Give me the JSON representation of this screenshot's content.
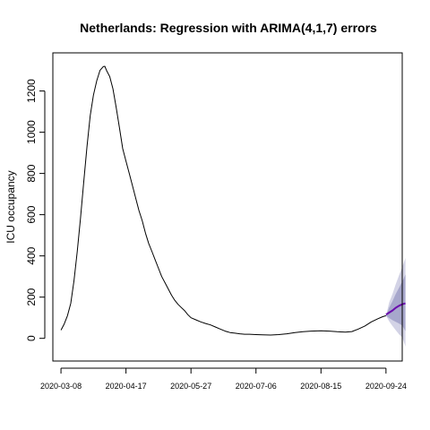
{
  "chart_data": {
    "type": "line",
    "title": "Netherlands: Regression with ARIMA(4,1,7) errors",
    "xlabel": "",
    "ylabel": "ICU occupancy",
    "x_tick_labels": [
      "2020-03-08",
      "2020-04-17",
      "2020-05-27",
      "2020-07-06",
      "2020-08-15",
      "2020-09-24"
    ],
    "x_tick_dates": [
      "2020-03-08",
      "2020-04-17",
      "2020-05-27",
      "2020-07-06",
      "2020-08-15",
      "2020-09-24"
    ],
    "y_ticks": [
      0,
      200,
      400,
      600,
      800,
      1000,
      1200
    ],
    "xlim": [
      "2020-03-03",
      "2020-10-04"
    ],
    "ylim": [
      -110,
      1385
    ],
    "grid": false,
    "legend": "none",
    "series": [
      {
        "role": "observed",
        "color": "#000000",
        "points": [
          [
            "2020-03-08",
            40
          ],
          [
            "2020-03-10",
            70
          ],
          [
            "2020-03-12",
            110
          ],
          [
            "2020-03-14",
            170
          ],
          [
            "2020-03-16",
            280
          ],
          [
            "2020-03-18",
            420
          ],
          [
            "2020-03-20",
            580
          ],
          [
            "2020-03-22",
            760
          ],
          [
            "2020-03-24",
            930
          ],
          [
            "2020-03-26",
            1080
          ],
          [
            "2020-03-28",
            1180
          ],
          [
            "2020-03-30",
            1250
          ],
          [
            "2020-04-01",
            1300
          ],
          [
            "2020-04-03",
            1318
          ],
          [
            "2020-04-04",
            1320
          ],
          [
            "2020-04-05",
            1300
          ],
          [
            "2020-04-07",
            1270
          ],
          [
            "2020-04-09",
            1210
          ],
          [
            "2020-04-11",
            1120
          ],
          [
            "2020-04-13",
            1020
          ],
          [
            "2020-04-15",
            920
          ],
          [
            "2020-04-17",
            860
          ],
          [
            "2020-04-19",
            800
          ],
          [
            "2020-04-21",
            740
          ],
          [
            "2020-04-23",
            680
          ],
          [
            "2020-04-25",
            620
          ],
          [
            "2020-04-27",
            570
          ],
          [
            "2020-04-29",
            510
          ],
          [
            "2020-05-01",
            460
          ],
          [
            "2020-05-03",
            420
          ],
          [
            "2020-05-05",
            380
          ],
          [
            "2020-05-07",
            340
          ],
          [
            "2020-05-09",
            300
          ],
          [
            "2020-05-11",
            270
          ],
          [
            "2020-05-13",
            240
          ],
          [
            "2020-05-15",
            210
          ],
          [
            "2020-05-17",
            185
          ],
          [
            "2020-05-19",
            165
          ],
          [
            "2020-05-21",
            150
          ],
          [
            "2020-05-23",
            135
          ],
          [
            "2020-05-25",
            115
          ],
          [
            "2020-05-27",
            100
          ],
          [
            "2020-05-30",
            90
          ],
          [
            "2020-06-02",
            80
          ],
          [
            "2020-06-05",
            72
          ],
          [
            "2020-06-08",
            65
          ],
          [
            "2020-06-11",
            55
          ],
          [
            "2020-06-14",
            45
          ],
          [
            "2020-06-17",
            35
          ],
          [
            "2020-06-20",
            28
          ],
          [
            "2020-06-23",
            25
          ],
          [
            "2020-06-26",
            22
          ],
          [
            "2020-06-29",
            20
          ],
          [
            "2020-07-02",
            20
          ],
          [
            "2020-07-06",
            18
          ],
          [
            "2020-07-10",
            17
          ],
          [
            "2020-07-15",
            16
          ],
          [
            "2020-07-20",
            18
          ],
          [
            "2020-07-25",
            22
          ],
          [
            "2020-07-30",
            28
          ],
          [
            "2020-08-04",
            32
          ],
          [
            "2020-08-09",
            35
          ],
          [
            "2020-08-15",
            37
          ],
          [
            "2020-08-20",
            35
          ],
          [
            "2020-08-25",
            32
          ],
          [
            "2020-08-30",
            30
          ],
          [
            "2020-09-03",
            33
          ],
          [
            "2020-09-07",
            45
          ],
          [
            "2020-09-11",
            60
          ],
          [
            "2020-09-15",
            80
          ],
          [
            "2020-09-19",
            95
          ],
          [
            "2020-09-22",
            105
          ],
          [
            "2020-09-24",
            110
          ]
        ]
      },
      {
        "role": "forecast",
        "color": "#6a0dad",
        "points": [
          [
            "2020-09-24",
            115
          ],
          [
            "2020-09-26",
            125
          ],
          [
            "2020-09-28",
            135
          ],
          [
            "2020-09-30",
            148
          ],
          [
            "2020-10-02",
            158
          ],
          [
            "2020-10-04",
            165
          ],
          [
            "2020-10-06",
            170
          ]
        ]
      }
    ],
    "intervals": [
      {
        "level": "95",
        "color": "#d3d3e6",
        "points": [
          [
            "2020-09-24",
            110,
            110
          ],
          [
            "2020-09-26",
            82,
            175
          ],
          [
            "2020-09-28",
            60,
            215
          ],
          [
            "2020-09-30",
            40,
            262
          ],
          [
            "2020-10-02",
            20,
            305
          ],
          [
            "2020-10-04",
            5,
            345
          ],
          [
            "2020-10-06",
            -40,
            390
          ]
        ]
      },
      {
        "level": "80",
        "color": "#a7a7cc",
        "points": [
          [
            "2020-09-24",
            110,
            110
          ],
          [
            "2020-09-26",
            98,
            150
          ],
          [
            "2020-09-28",
            88,
            180
          ],
          [
            "2020-09-30",
            80,
            215
          ],
          [
            "2020-10-02",
            72,
            245
          ],
          [
            "2020-10-04",
            62,
            275
          ],
          [
            "2020-10-06",
            35,
            310
          ]
        ]
      }
    ]
  }
}
